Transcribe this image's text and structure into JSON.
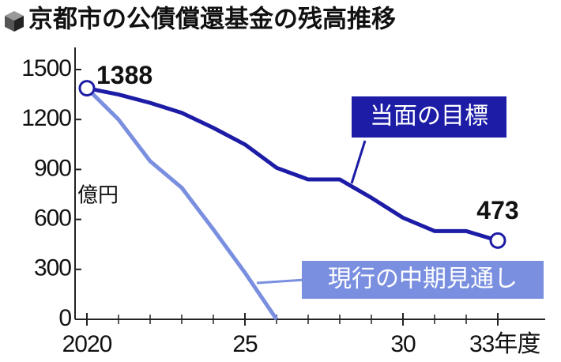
{
  "chart_data": {
    "type": "line",
    "title": "京都市の公債償還基金の残高推移",
    "y_label": "億円",
    "x": [
      2020,
      2021,
      2022,
      2023,
      2024,
      2025,
      2026,
      2027,
      2028,
      2029,
      2030,
      2031,
      2032,
      2033
    ],
    "series": [
      {
        "name": "当面の目標",
        "color": "#1c1ca6",
        "values": [
          1388,
          1350,
          1300,
          1240,
          1150,
          1050,
          910,
          840,
          840,
          730,
          610,
          530,
          530,
          473
        ]
      },
      {
        "name": "現行の中期見通し",
        "color": "#7a8fe0",
        "values": [
          1388,
          1200,
          950,
          790,
          540,
          280,
          0,
          null,
          null,
          null,
          null,
          null,
          null,
          null
        ]
      }
    ],
    "xlim": [
      2020,
      2033
    ],
    "xticks": [
      2020,
      {
        "value": 2025,
        "label": "25"
      },
      {
        "value": 2030,
        "label": "30"
      },
      {
        "value": 2033,
        "label": "33年度"
      }
    ],
    "ylim": [
      0,
      1500
    ],
    "yticks": [
      0,
      300,
      600,
      900,
      1200,
      1500
    ]
  }
}
